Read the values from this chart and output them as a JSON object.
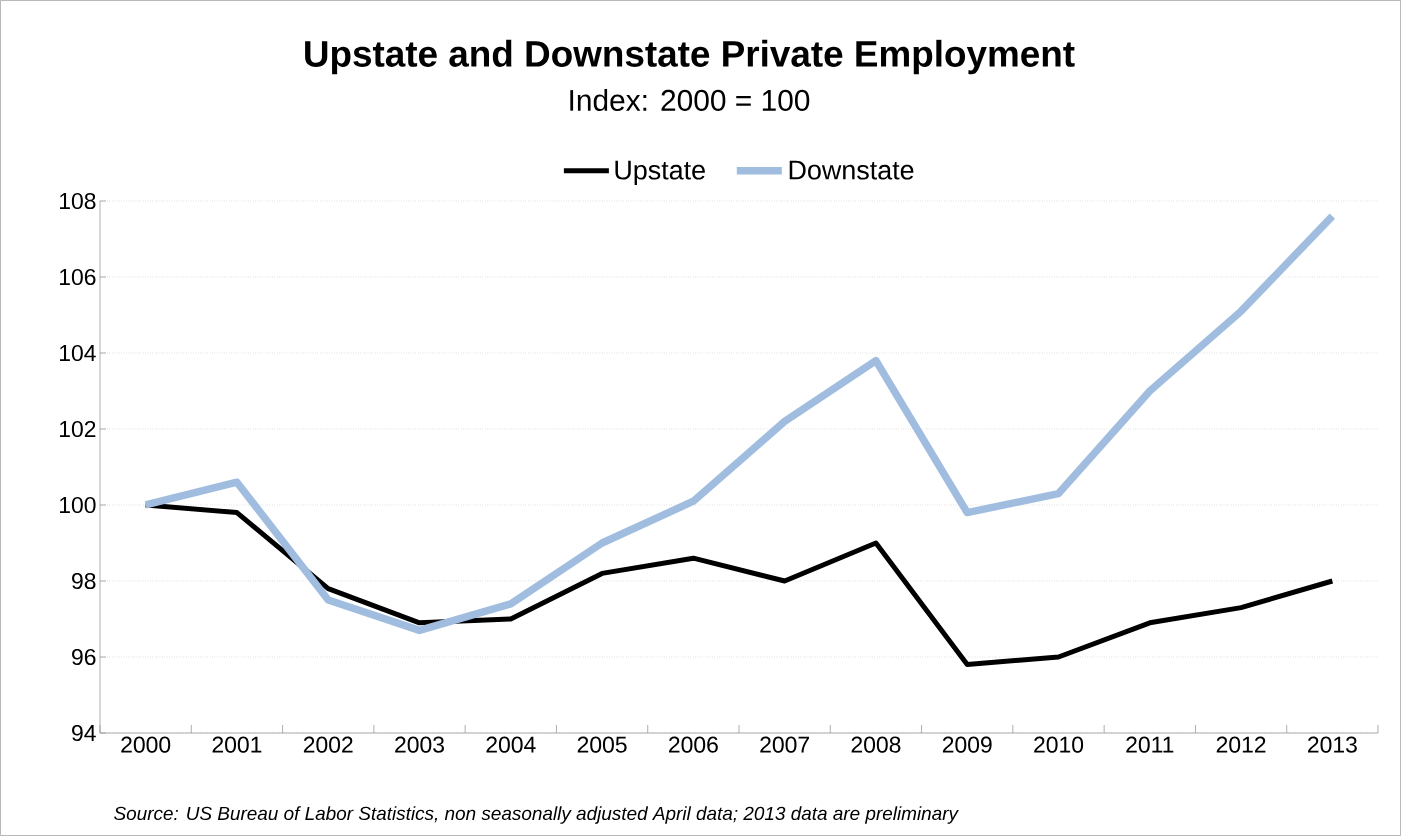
{
  "chart_data": {
    "type": "line",
    "title": "Upstate and Downstate Private Employment",
    "subtitle": "Index: 2000 = 100",
    "categories": [
      "2000",
      "2001",
      "2002",
      "2003",
      "2004",
      "2005",
      "2006",
      "2007",
      "2008",
      "2009",
      "2010",
      "2011",
      "2012",
      "2013"
    ],
    "series": [
      {
        "name": "Upstate",
        "color": "#000000",
        "values": [
          100.0,
          99.8,
          97.8,
          96.9,
          97.0,
          98.2,
          98.6,
          98.0,
          99.0,
          95.8,
          96.0,
          96.9,
          97.3,
          98.0
        ]
      },
      {
        "name": "Downstate",
        "color": "#a0bde0",
        "values": [
          100.0,
          100.6,
          97.5,
          96.7,
          97.4,
          99.0,
          100.1,
          102.2,
          103.8,
          99.8,
          100.3,
          103.0,
          105.1,
          107.6
        ]
      }
    ],
    "ylim": [
      94,
      108
    ],
    "yticks": [
      94,
      96,
      98,
      100,
      102,
      104,
      106,
      108
    ],
    "grid": "y",
    "legend": "top",
    "marker": "none",
    "line_style": "solid",
    "annotations": [
      "Source: US Bureau of Labor Statistics, non seasonally adjusted April data; 2013 data are preliminary"
    ]
  }
}
